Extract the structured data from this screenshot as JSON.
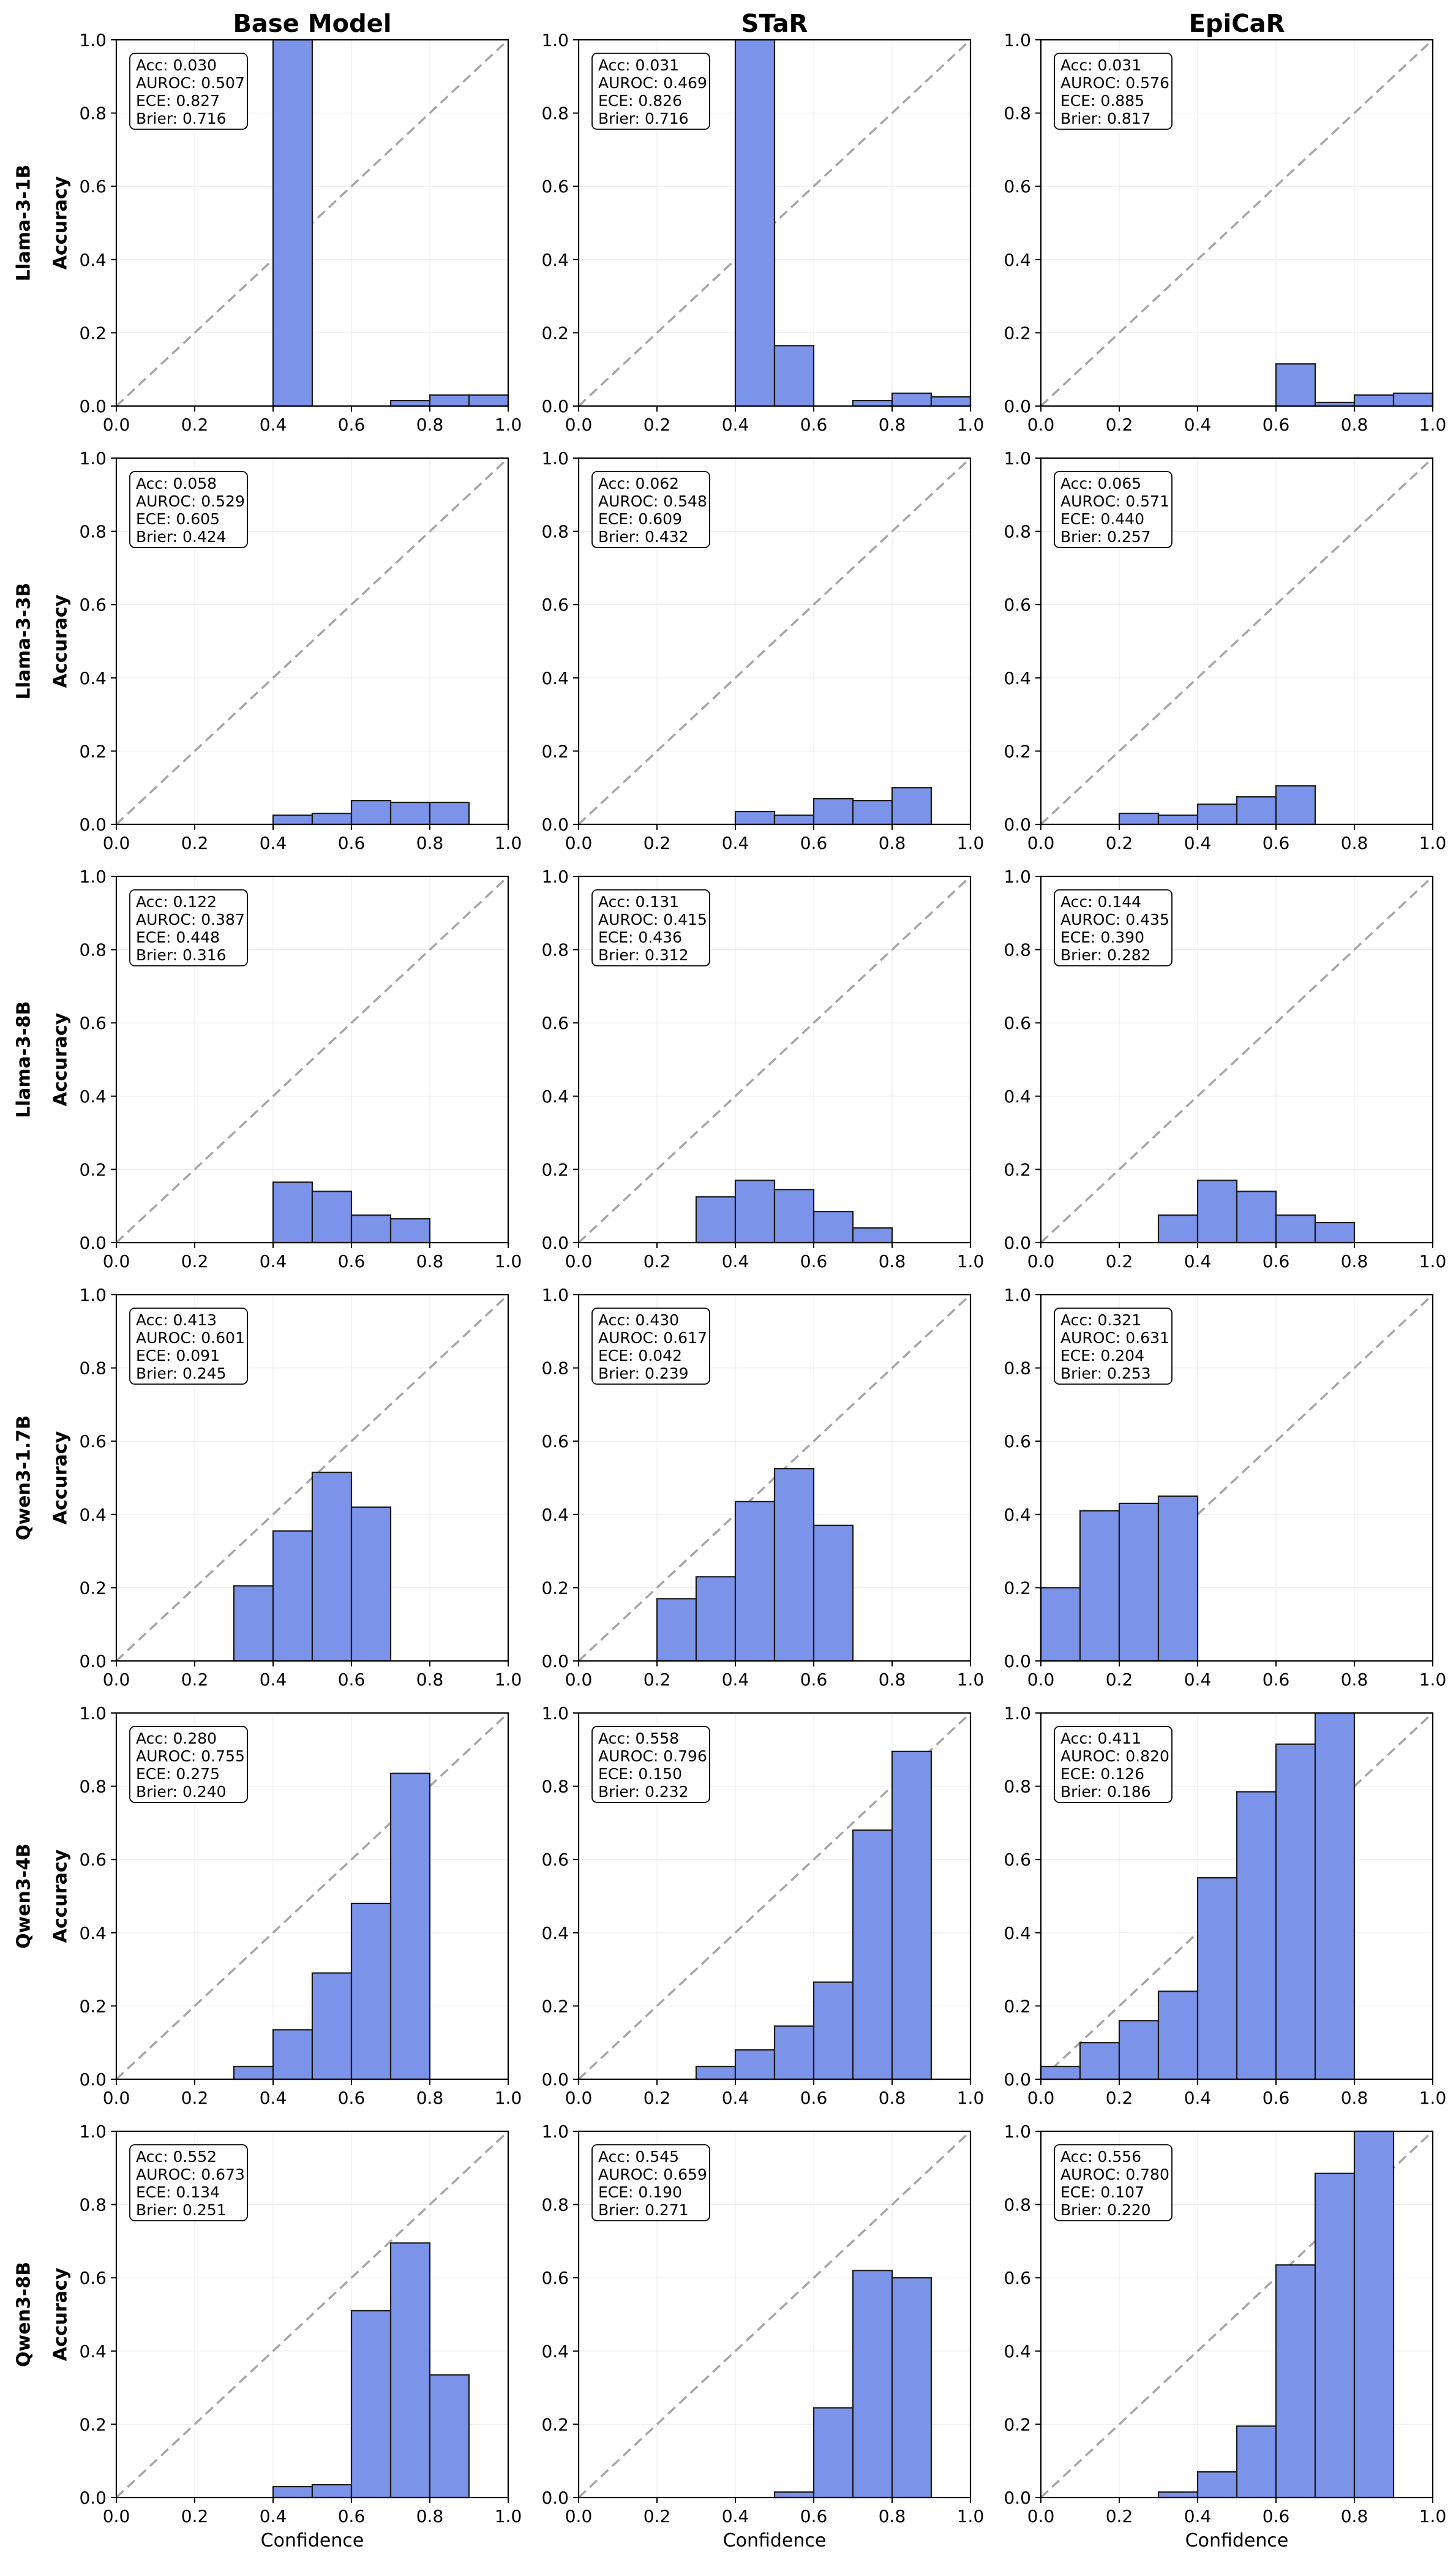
{
  "figure": {
    "column_titles": [
      "Base Model",
      "STaR",
      "EpiCaR"
    ],
    "row_labels": [
      "Llama-3-1B",
      "Llama-3-3B",
      "Llama-3-8B",
      "Qwen3-1.7B",
      "Qwen3-4B",
      "Qwen3-8B"
    ],
    "y_axis_label": "Accuracy",
    "x_axis_label": "Confidence",
    "bar_color": "#7b93e8",
    "bar_edge_color": "#1a1a1a",
    "diagonal_color": "#a6a6a6"
  },
  "chart_data": [
    {
      "type": "bar",
      "row": "Llama-3-1B",
      "method": "Base Model",
      "bin_edges": [
        0,
        0.1,
        0.2,
        0.3,
        0.4,
        0.5,
        0.6,
        0.7,
        0.8,
        0.9,
        1.0
      ],
      "values": [
        null,
        null,
        null,
        null,
        1.0,
        null,
        null,
        0.015,
        0.03,
        0.03
      ],
      "xlabel": "",
      "ylabel": "Accuracy",
      "xlim": [
        0,
        1
      ],
      "ylim": [
        0,
        1
      ],
      "xticks": [
        "0.0",
        "0.2",
        "0.4",
        "0.6",
        "0.8",
        "1.0"
      ],
      "yticks": [
        "0.0",
        "0.2",
        "0.4",
        "0.6",
        "0.8",
        "1.0"
      ],
      "stats": [
        "Acc: 0.030",
        "AUROC: 0.507",
        "ECE: 0.827",
        "Brier: 0.716"
      ]
    },
    {
      "type": "bar",
      "row": "Llama-3-1B",
      "method": "STaR",
      "bin_edges": [
        0,
        0.1,
        0.2,
        0.3,
        0.4,
        0.5,
        0.6,
        0.7,
        0.8,
        0.9,
        1.0
      ],
      "values": [
        null,
        null,
        null,
        null,
        1.0,
        0.165,
        null,
        0.015,
        0.035,
        0.025
      ],
      "xlabel": "",
      "ylabel": "",
      "xlim": [
        0,
        1
      ],
      "ylim": [
        0,
        1
      ],
      "xticks": [
        "0.0",
        "0.2",
        "0.4",
        "0.6",
        "0.8",
        "1.0"
      ],
      "yticks": [
        "0.0",
        "0.2",
        "0.4",
        "0.6",
        "0.8",
        "1.0"
      ],
      "stats": [
        "Acc: 0.031",
        "AUROC: 0.469",
        "ECE: 0.826",
        "Brier: 0.716"
      ]
    },
    {
      "type": "bar",
      "row": "Llama-3-1B",
      "method": "EpiCaR",
      "bin_edges": [
        0,
        0.1,
        0.2,
        0.3,
        0.4,
        0.5,
        0.6,
        0.7,
        0.8,
        0.9,
        1.0
      ],
      "values": [
        null,
        null,
        null,
        null,
        null,
        null,
        0.115,
        0.01,
        0.03,
        0.035
      ],
      "xlabel": "",
      "ylabel": "",
      "xlim": [
        0,
        1
      ],
      "ylim": [
        0,
        1
      ],
      "xticks": [
        "0.0",
        "0.2",
        "0.4",
        "0.6",
        "0.8",
        "1.0"
      ],
      "yticks": [
        "0.0",
        "0.2",
        "0.4",
        "0.6",
        "0.8",
        "1.0"
      ],
      "stats": [
        "Acc: 0.031",
        "AUROC: 0.576",
        "ECE: 0.885",
        "Brier: 0.817"
      ]
    },
    {
      "type": "bar",
      "row": "Llama-3-3B",
      "method": "Base Model",
      "bin_edges": [
        0,
        0.1,
        0.2,
        0.3,
        0.4,
        0.5,
        0.6,
        0.7,
        0.8,
        0.9,
        1.0
      ],
      "values": [
        null,
        null,
        null,
        null,
        0.025,
        0.03,
        0.065,
        0.06,
        0.06,
        null
      ],
      "xlabel": "",
      "ylabel": "Accuracy",
      "xlim": [
        0,
        1
      ],
      "ylim": [
        0,
        1
      ],
      "xticks": [
        "0.0",
        "0.2",
        "0.4",
        "0.6",
        "0.8",
        "1.0"
      ],
      "yticks": [
        "0.0",
        "0.2",
        "0.4",
        "0.6",
        "0.8",
        "1.0"
      ],
      "stats": [
        "Acc: 0.058",
        "AUROC: 0.529",
        "ECE: 0.605",
        "Brier: 0.424"
      ]
    },
    {
      "type": "bar",
      "row": "Llama-3-3B",
      "method": "STaR",
      "bin_edges": [
        0,
        0.1,
        0.2,
        0.3,
        0.4,
        0.5,
        0.6,
        0.7,
        0.8,
        0.9,
        1.0
      ],
      "values": [
        null,
        null,
        null,
        null,
        0.035,
        0.025,
        0.07,
        0.065,
        0.1,
        null
      ],
      "xlabel": "",
      "ylabel": "",
      "xlim": [
        0,
        1
      ],
      "ylim": [
        0,
        1
      ],
      "xticks": [
        "0.0",
        "0.2",
        "0.4",
        "0.6",
        "0.8",
        "1.0"
      ],
      "yticks": [
        "0.0",
        "0.2",
        "0.4",
        "0.6",
        "0.8",
        "1.0"
      ],
      "stats": [
        "Acc: 0.062",
        "AUROC: 0.548",
        "ECE: 0.609",
        "Brier: 0.432"
      ]
    },
    {
      "type": "bar",
      "row": "Llama-3-3B",
      "method": "EpiCaR",
      "bin_edges": [
        0,
        0.1,
        0.2,
        0.3,
        0.4,
        0.5,
        0.6,
        0.7,
        0.8,
        0.9,
        1.0
      ],
      "values": [
        null,
        null,
        0.03,
        0.025,
        0.055,
        0.075,
        0.105,
        null,
        null,
        null
      ],
      "xlabel": "",
      "ylabel": "",
      "xlim": [
        0,
        1
      ],
      "ylim": [
        0,
        1
      ],
      "xticks": [
        "0.0",
        "0.2",
        "0.4",
        "0.6",
        "0.8",
        "1.0"
      ],
      "yticks": [
        "0.0",
        "0.2",
        "0.4",
        "0.6",
        "0.8",
        "1.0"
      ],
      "stats": [
        "Acc: 0.065",
        "AUROC: 0.571",
        "ECE: 0.440",
        "Brier: 0.257"
      ]
    },
    {
      "type": "bar",
      "row": "Llama-3-8B",
      "method": "Base Model",
      "bin_edges": [
        0,
        0.1,
        0.2,
        0.3,
        0.4,
        0.5,
        0.6,
        0.7,
        0.8,
        0.9,
        1.0
      ],
      "values": [
        null,
        null,
        null,
        null,
        0.165,
        0.14,
        0.075,
        0.065,
        null,
        null
      ],
      "xlabel": "",
      "ylabel": "Accuracy",
      "xlim": [
        0,
        1
      ],
      "ylim": [
        0,
        1
      ],
      "xticks": [
        "0.0",
        "0.2",
        "0.4",
        "0.6",
        "0.8",
        "1.0"
      ],
      "yticks": [
        "0.0",
        "0.2",
        "0.4",
        "0.6",
        "0.8",
        "1.0"
      ],
      "stats": [
        "Acc: 0.122",
        "AUROC: 0.387",
        "ECE: 0.448",
        "Brier: 0.316"
      ]
    },
    {
      "type": "bar",
      "row": "Llama-3-8B",
      "method": "STaR",
      "bin_edges": [
        0,
        0.1,
        0.2,
        0.3,
        0.4,
        0.5,
        0.6,
        0.7,
        0.8,
        0.9,
        1.0
      ],
      "values": [
        null,
        null,
        null,
        0.125,
        0.17,
        0.145,
        0.085,
        0.04,
        null,
        null
      ],
      "xlabel": "",
      "ylabel": "",
      "xlim": [
        0,
        1
      ],
      "ylim": [
        0,
        1
      ],
      "xticks": [
        "0.0",
        "0.2",
        "0.4",
        "0.6",
        "0.8",
        "1.0"
      ],
      "yticks": [
        "0.0",
        "0.2",
        "0.4",
        "0.6",
        "0.8",
        "1.0"
      ],
      "stats": [
        "Acc: 0.131",
        "AUROC: 0.415",
        "ECE: 0.436",
        "Brier: 0.312"
      ]
    },
    {
      "type": "bar",
      "row": "Llama-3-8B",
      "method": "EpiCaR",
      "bin_edges": [
        0,
        0.1,
        0.2,
        0.3,
        0.4,
        0.5,
        0.6,
        0.7,
        0.8,
        0.9,
        1.0
      ],
      "values": [
        null,
        null,
        null,
        0.075,
        0.17,
        0.14,
        0.075,
        0.055,
        null,
        null
      ],
      "xlabel": "",
      "ylabel": "",
      "xlim": [
        0,
        1
      ],
      "ylim": [
        0,
        1
      ],
      "xticks": [
        "0.0",
        "0.2",
        "0.4",
        "0.6",
        "0.8",
        "1.0"
      ],
      "yticks": [
        "0.0",
        "0.2",
        "0.4",
        "0.6",
        "0.8",
        "1.0"
      ],
      "stats": [
        "Acc: 0.144",
        "AUROC: 0.435",
        "ECE: 0.390",
        "Brier: 0.282"
      ]
    },
    {
      "type": "bar",
      "row": "Qwen3-1.7B",
      "method": "Base Model",
      "bin_edges": [
        0,
        0.1,
        0.2,
        0.3,
        0.4,
        0.5,
        0.6,
        0.7,
        0.8,
        0.9,
        1.0
      ],
      "values": [
        null,
        null,
        null,
        0.205,
        0.355,
        0.515,
        0.42,
        null,
        null,
        null
      ],
      "xlabel": "",
      "ylabel": "Accuracy",
      "xlim": [
        0,
        1
      ],
      "ylim": [
        0,
        1
      ],
      "xticks": [
        "0.0",
        "0.2",
        "0.4",
        "0.6",
        "0.8",
        "1.0"
      ],
      "yticks": [
        "0.0",
        "0.2",
        "0.4",
        "0.6",
        "0.8",
        "1.0"
      ],
      "stats": [
        "Acc: 0.413",
        "AUROC: 0.601",
        "ECE: 0.091",
        "Brier: 0.245"
      ]
    },
    {
      "type": "bar",
      "row": "Qwen3-1.7B",
      "method": "STaR",
      "bin_edges": [
        0,
        0.1,
        0.2,
        0.3,
        0.4,
        0.5,
        0.6,
        0.7,
        0.8,
        0.9,
        1.0
      ],
      "values": [
        null,
        null,
        0.17,
        0.23,
        0.435,
        0.525,
        0.37,
        null,
        null,
        null
      ],
      "xlabel": "",
      "ylabel": "",
      "xlim": [
        0,
        1
      ],
      "ylim": [
        0,
        1
      ],
      "xticks": [
        "0.0",
        "0.2",
        "0.4",
        "0.6",
        "0.8",
        "1.0"
      ],
      "yticks": [
        "0.0",
        "0.2",
        "0.4",
        "0.6",
        "0.8",
        "1.0"
      ],
      "stats": [
        "Acc: 0.430",
        "AUROC: 0.617",
        "ECE: 0.042",
        "Brier: 0.239"
      ]
    },
    {
      "type": "bar",
      "row": "Qwen3-1.7B",
      "method": "EpiCaR",
      "bin_edges": [
        0,
        0.1,
        0.2,
        0.3,
        0.4,
        0.5,
        0.6,
        0.7,
        0.8,
        0.9,
        1.0
      ],
      "values": [
        0.2,
        0.41,
        0.43,
        0.45,
        null,
        null,
        null,
        null,
        null,
        null
      ],
      "xlabel": "",
      "ylabel": "",
      "xlim": [
        0,
        1
      ],
      "ylim": [
        0,
        1
      ],
      "xticks": [
        "0.0",
        "0.2",
        "0.4",
        "0.6",
        "0.8",
        "1.0"
      ],
      "yticks": [
        "0.0",
        "0.2",
        "0.4",
        "0.6",
        "0.8",
        "1.0"
      ],
      "stats": [
        "Acc: 0.321",
        "AUROC: 0.631",
        "ECE: 0.204",
        "Brier: 0.253"
      ]
    },
    {
      "type": "bar",
      "row": "Qwen3-4B",
      "method": "Base Model",
      "bin_edges": [
        0,
        0.1,
        0.2,
        0.3,
        0.4,
        0.5,
        0.6,
        0.7,
        0.8,
        0.9,
        1.0
      ],
      "values": [
        null,
        null,
        null,
        0.035,
        0.135,
        0.29,
        0.48,
        0.835,
        null,
        null
      ],
      "xlabel": "",
      "ylabel": "Accuracy",
      "xlim": [
        0,
        1
      ],
      "ylim": [
        0,
        1
      ],
      "xticks": [
        "0.0",
        "0.2",
        "0.4",
        "0.6",
        "0.8",
        "1.0"
      ],
      "yticks": [
        "0.0",
        "0.2",
        "0.4",
        "0.6",
        "0.8",
        "1.0"
      ],
      "stats": [
        "Acc: 0.280",
        "AUROC: 0.755",
        "ECE: 0.275",
        "Brier: 0.240"
      ]
    },
    {
      "type": "bar",
      "row": "Qwen3-4B",
      "method": "STaR",
      "bin_edges": [
        0,
        0.1,
        0.2,
        0.3,
        0.4,
        0.5,
        0.6,
        0.7,
        0.8,
        0.9,
        1.0
      ],
      "values": [
        null,
        null,
        null,
        0.035,
        0.08,
        0.145,
        0.265,
        0.68,
        0.895,
        null
      ],
      "xlabel": "",
      "ylabel": "",
      "xlim": [
        0,
        1
      ],
      "ylim": [
        0,
        1
      ],
      "xticks": [
        "0.0",
        "0.2",
        "0.4",
        "0.6",
        "0.8",
        "1.0"
      ],
      "yticks": [
        "0.0",
        "0.2",
        "0.4",
        "0.6",
        "0.8",
        "1.0"
      ],
      "stats": [
        "Acc: 0.558",
        "AUROC: 0.796",
        "ECE: 0.150",
        "Brier: 0.232"
      ]
    },
    {
      "type": "bar",
      "row": "Qwen3-4B",
      "method": "EpiCaR",
      "bin_edges": [
        0,
        0.1,
        0.2,
        0.3,
        0.4,
        0.5,
        0.6,
        0.7,
        0.8,
        0.9,
        1.0
      ],
      "values": [
        0.035,
        0.1,
        0.16,
        0.24,
        0.55,
        0.785,
        0.915,
        1.0,
        null,
        null
      ],
      "xlabel": "",
      "ylabel": "",
      "xlim": [
        0,
        1
      ],
      "ylim": [
        0,
        1
      ],
      "xticks": [
        "0.0",
        "0.2",
        "0.4",
        "0.6",
        "0.8",
        "1.0"
      ],
      "yticks": [
        "0.0",
        "0.2",
        "0.4",
        "0.6",
        "0.8",
        "1.0"
      ],
      "stats": [
        "Acc: 0.411",
        "AUROC: 0.820",
        "ECE: 0.126",
        "Brier: 0.186"
      ]
    },
    {
      "type": "bar",
      "row": "Qwen3-8B",
      "method": "Base Model",
      "bin_edges": [
        0,
        0.1,
        0.2,
        0.3,
        0.4,
        0.5,
        0.6,
        0.7,
        0.8,
        0.9,
        1.0
      ],
      "values": [
        null,
        null,
        null,
        null,
        0.03,
        0.035,
        0.51,
        0.695,
        0.335,
        null
      ],
      "xlabel": "Confidence",
      "ylabel": "Accuracy",
      "xlim": [
        0,
        1
      ],
      "ylim": [
        0,
        1
      ],
      "xticks": [
        "0.0",
        "0.2",
        "0.4",
        "0.6",
        "0.8",
        "1.0"
      ],
      "yticks": [
        "0.0",
        "0.2",
        "0.4",
        "0.6",
        "0.8",
        "1.0"
      ],
      "stats": [
        "Acc: 0.552",
        "AUROC: 0.673",
        "ECE: 0.134",
        "Brier: 0.251"
      ]
    },
    {
      "type": "bar",
      "row": "Qwen3-8B",
      "method": "STaR",
      "bin_edges": [
        0,
        0.1,
        0.2,
        0.3,
        0.4,
        0.5,
        0.6,
        0.7,
        0.8,
        0.9,
        1.0
      ],
      "values": [
        null,
        null,
        null,
        null,
        null,
        0.015,
        0.245,
        0.62,
        0.6,
        null
      ],
      "xlabel": "Confidence",
      "ylabel": "",
      "xlim": [
        0,
        1
      ],
      "ylim": [
        0,
        1
      ],
      "xticks": [
        "0.0",
        "0.2",
        "0.4",
        "0.6",
        "0.8",
        "1.0"
      ],
      "yticks": [
        "0.0",
        "0.2",
        "0.4",
        "0.6",
        "0.8",
        "1.0"
      ],
      "stats": [
        "Acc: 0.545",
        "AUROC: 0.659",
        "ECE: 0.190",
        "Brier: 0.271"
      ]
    },
    {
      "type": "bar",
      "row": "Qwen3-8B",
      "method": "EpiCaR",
      "bin_edges": [
        0,
        0.1,
        0.2,
        0.3,
        0.4,
        0.5,
        0.6,
        0.7,
        0.8,
        0.9,
        1.0
      ],
      "values": [
        null,
        null,
        null,
        0.015,
        0.07,
        0.195,
        0.635,
        0.885,
        1.0,
        null
      ],
      "xlabel": "Confidence",
      "ylabel": "",
      "xlim": [
        0,
        1
      ],
      "ylim": [
        0,
        1
      ],
      "xticks": [
        "0.0",
        "0.2",
        "0.4",
        "0.6",
        "0.8",
        "1.0"
      ],
      "yticks": [
        "0.0",
        "0.2",
        "0.4",
        "0.6",
        "0.8",
        "1.0"
      ],
      "stats": [
        "Acc: 0.556",
        "AUROC: 0.780",
        "ECE: 0.107",
        "Brier: 0.220"
      ]
    }
  ]
}
